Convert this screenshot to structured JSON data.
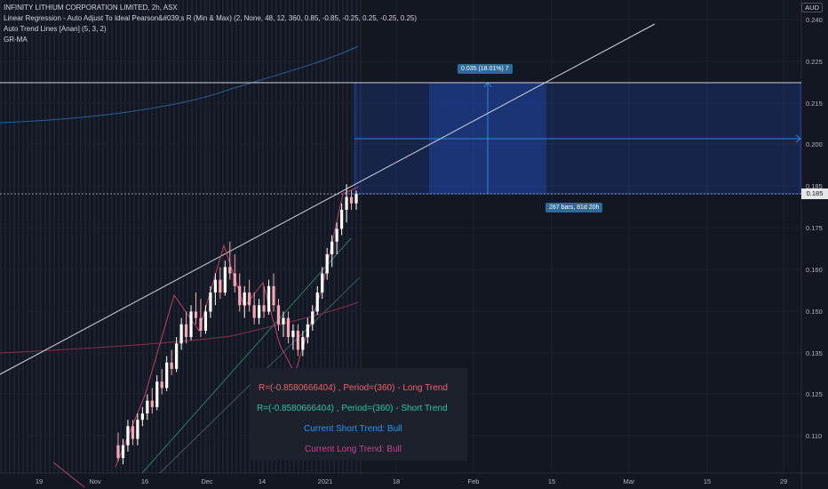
{
  "legend": {
    "title": "INFINITY LITHIUM CORPORATION LIMITED, 2h, ASX",
    "indicator1": "Linear Regression - Auto Adjust To Ideal Pearson&#039;s R (Min & Max) (2, None, 48, 12, 360, 0.85, -0.85, -0.25, 0.25, -0.25, 0.25)",
    "indicator2": "Auto Trend Lines [Anan] (5, 3, 2)",
    "indicator3": "GR-MA"
  },
  "currency": "AUD",
  "measure": {
    "top_label": "0.035 (18.01%) 7",
    "bottom_label": "287 bars, 81d 20h"
  },
  "current_price": "0.185",
  "info_box": {
    "long_trend": "R=(-0.8580666404) , Period=(360) - Long Trend",
    "short_trend": "R=(-0.8580666404) , Period=(360) - Short Trend",
    "short_status": "Current Short Trend: Bull",
    "long_status": "Current Long Trend: Bull"
  },
  "colors": {
    "background": "#131722",
    "bull_candle": "#ffffff",
    "bear_candle": "#f7a6b5",
    "measure_fill": "#1e5a8c",
    "long_trend_text": "#f0616d",
    "short_trend_text": "#26c6a6",
    "short_status_text": "#2196f3",
    "long_status_text": "#c2448f"
  },
  "chart_data": {
    "type": "candlestick",
    "y_axis": {
      "min": 0.1,
      "max": 0.245,
      "tick_labels": [
        "0.240",
        "0.225",
        "0.215",
        "0.200",
        "0.185",
        "0.175",
        "0.160",
        "0.150",
        "0.135",
        "0.125",
        "0.110"
      ]
    },
    "x_axis": {
      "tick_labels": [
        "19",
        "Nov",
        "16",
        "Dec",
        "14",
        "2021",
        "18",
        "Feb",
        "15",
        "Mar",
        "15",
        "29"
      ]
    },
    "ohlc": [
      {
        "o": 0.106,
        "h": 0.11,
        "l": 0.101,
        "c": 0.102
      },
      {
        "o": 0.102,
        "h": 0.108,
        "l": 0.1,
        "c": 0.106
      },
      {
        "o": 0.106,
        "h": 0.114,
        "l": 0.104,
        "c": 0.112
      },
      {
        "o": 0.112,
        "h": 0.114,
        "l": 0.106,
        "c": 0.108
      },
      {
        "o": 0.108,
        "h": 0.116,
        "l": 0.106,
        "c": 0.114
      },
      {
        "o": 0.114,
        "h": 0.118,
        "l": 0.112,
        "c": 0.116
      },
      {
        "o": 0.116,
        "h": 0.122,
        "l": 0.114,
        "c": 0.12
      },
      {
        "o": 0.12,
        "h": 0.124,
        "l": 0.116,
        "c": 0.118
      },
      {
        "o": 0.118,
        "h": 0.128,
        "l": 0.117,
        "c": 0.126
      },
      {
        "o": 0.126,
        "h": 0.13,
        "l": 0.122,
        "c": 0.124
      },
      {
        "o": 0.124,
        "h": 0.134,
        "l": 0.123,
        "c": 0.132
      },
      {
        "o": 0.132,
        "h": 0.136,
        "l": 0.128,
        "c": 0.13
      },
      {
        "o": 0.13,
        "h": 0.14,
        "l": 0.129,
        "c": 0.138
      },
      {
        "o": 0.138,
        "h": 0.146,
        "l": 0.136,
        "c": 0.144
      },
      {
        "o": 0.144,
        "h": 0.148,
        "l": 0.138,
        "c": 0.14
      },
      {
        "o": 0.14,
        "h": 0.15,
        "l": 0.139,
        "c": 0.148
      },
      {
        "o": 0.148,
        "h": 0.154,
        "l": 0.144,
        "c": 0.146
      },
      {
        "o": 0.146,
        "h": 0.152,
        "l": 0.14,
        "c": 0.142
      },
      {
        "o": 0.142,
        "h": 0.15,
        "l": 0.141,
        "c": 0.148
      },
      {
        "o": 0.148,
        "h": 0.156,
        "l": 0.146,
        "c": 0.154
      },
      {
        "o": 0.154,
        "h": 0.16,
        "l": 0.15,
        "c": 0.158
      },
      {
        "o": 0.158,
        "h": 0.162,
        "l": 0.152,
        "c": 0.154
      },
      {
        "o": 0.154,
        "h": 0.164,
        "l": 0.153,
        "c": 0.162
      },
      {
        "o": 0.162,
        "h": 0.17,
        "l": 0.158,
        "c": 0.16
      },
      {
        "o": 0.16,
        "h": 0.166,
        "l": 0.154,
        "c": 0.156
      },
      {
        "o": 0.156,
        "h": 0.16,
        "l": 0.148,
        "c": 0.15
      },
      {
        "o": 0.15,
        "h": 0.156,
        "l": 0.146,
        "c": 0.154
      },
      {
        "o": 0.154,
        "h": 0.158,
        "l": 0.148,
        "c": 0.15
      },
      {
        "o": 0.15,
        "h": 0.154,
        "l": 0.144,
        "c": 0.146
      },
      {
        "o": 0.146,
        "h": 0.152,
        "l": 0.144,
        "c": 0.15
      },
      {
        "o": 0.15,
        "h": 0.156,
        "l": 0.146,
        "c": 0.148
      },
      {
        "o": 0.148,
        "h": 0.158,
        "l": 0.147,
        "c": 0.156
      },
      {
        "o": 0.156,
        "h": 0.16,
        "l": 0.148,
        "c": 0.15
      },
      {
        "o": 0.15,
        "h": 0.152,
        "l": 0.142,
        "c": 0.144
      },
      {
        "o": 0.144,
        "h": 0.148,
        "l": 0.14,
        "c": 0.146
      },
      {
        "o": 0.146,
        "h": 0.148,
        "l": 0.138,
        "c": 0.14
      },
      {
        "o": 0.14,
        "h": 0.144,
        "l": 0.136,
        "c": 0.142
      },
      {
        "o": 0.142,
        "h": 0.144,
        "l": 0.134,
        "c": 0.136
      },
      {
        "o": 0.136,
        "h": 0.142,
        "l": 0.134,
        "c": 0.14
      },
      {
        "o": 0.14,
        "h": 0.146,
        "l": 0.138,
        "c": 0.144
      },
      {
        "o": 0.144,
        "h": 0.15,
        "l": 0.142,
        "c": 0.148
      },
      {
        "o": 0.148,
        "h": 0.156,
        "l": 0.147,
        "c": 0.154
      },
      {
        "o": 0.154,
        "h": 0.162,
        "l": 0.152,
        "c": 0.16
      },
      {
        "o": 0.16,
        "h": 0.168,
        "l": 0.158,
        "c": 0.166
      },
      {
        "o": 0.166,
        "h": 0.172,
        "l": 0.162,
        "c": 0.17
      },
      {
        "o": 0.17,
        "h": 0.176,
        "l": 0.166,
        "c": 0.174
      },
      {
        "o": 0.174,
        "h": 0.182,
        "l": 0.172,
        "c": 0.18
      },
      {
        "o": 0.18,
        "h": 0.188,
        "l": 0.176,
        "c": 0.184
      },
      {
        "o": 0.184,
        "h": 0.186,
        "l": 0.18,
        "c": 0.182
      },
      {
        "o": 0.182,
        "h": 0.186,
        "l": 0.18,
        "c": 0.185
      }
    ]
  }
}
